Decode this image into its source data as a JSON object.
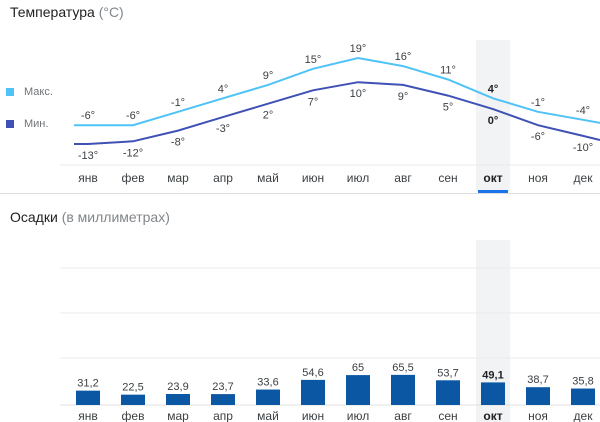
{
  "temperature": {
    "title": "Температура",
    "unit": "(°C)",
    "legend": {
      "max_label": "Макс.",
      "min_label": "Мин.",
      "max_color": "#4fc3f7",
      "min_color": "#3f51b5"
    }
  },
  "precipitation": {
    "title": "Осадки",
    "unit": "(в миллиметрах)",
    "bar_color": "#0b57a4"
  },
  "selected_month_index": 9,
  "chart_data": [
    {
      "type": "line",
      "categories": [
        "янв",
        "фев",
        "мар",
        "апр",
        "май",
        "июн",
        "июл",
        "авг",
        "сен",
        "окт",
        "ноя",
        "дек"
      ],
      "series": [
        {
          "name": "Макс.",
          "values": [
            -6,
            -6,
            -1,
            4,
            9,
            15,
            19,
            16,
            11,
            4,
            -1,
            -4
          ],
          "labels": [
            "-6°",
            "-6°",
            "-1°",
            "4°",
            "9°",
            "15°",
            "19°",
            "16°",
            "11°",
            "4°",
            "-1°",
            "-4°"
          ]
        },
        {
          "name": "Мин.",
          "values": [
            -13,
            -12,
            -8,
            -3,
            2,
            7,
            10,
            9,
            5,
            0,
            -6,
            -10
          ],
          "labels": [
            "-13°",
            "-12°",
            "-8°",
            "-3°",
            "2°",
            "7°",
            "10°",
            "9°",
            "5°",
            "0°",
            "-6°",
            "-10°"
          ]
        }
      ]
    },
    {
      "type": "bar",
      "categories": [
        "янв",
        "фев",
        "мар",
        "апр",
        "май",
        "июн",
        "июл",
        "авг",
        "сен",
        "окт",
        "ноя",
        "дек"
      ],
      "values": [
        31.2,
        22.5,
        23.9,
        23.7,
        33.6,
        54.6,
        65,
        65.5,
        53.7,
        49.1,
        38.7,
        35.8
      ],
      "labels": [
        "31,2",
        "22,5",
        "23,9",
        "23,7",
        "33,6",
        "54,6",
        "65",
        "65,5",
        "53,7",
        "49,1",
        "38,7",
        "35,8"
      ]
    }
  ]
}
